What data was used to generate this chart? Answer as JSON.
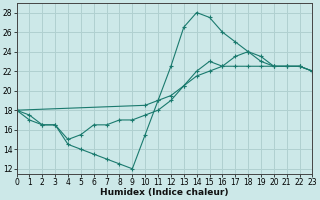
{
  "xlabel": "Humidex (Indice chaleur)",
  "background_color": "#cce8e8",
  "grid_color": "#b0d0d0",
  "line_color": "#1a7a6e",
  "xlim": [
    0,
    23
  ],
  "ylim": [
    11.5,
    29
  ],
  "xticks": [
    0,
    1,
    2,
    3,
    4,
    5,
    6,
    7,
    8,
    9,
    10,
    11,
    12,
    13,
    14,
    15,
    16,
    17,
    18,
    19,
    20,
    21,
    22,
    23
  ],
  "yticks": [
    12,
    14,
    16,
    18,
    20,
    22,
    24,
    26,
    28
  ],
  "lines": [
    {
      "x": [
        0,
        1,
        2,
        3,
        4,
        5,
        6,
        7,
        8,
        9,
        10,
        11,
        12,
        13,
        14,
        15,
        16,
        17,
        18,
        19,
        20,
        21,
        22,
        23
      ],
      "y": [
        18.0,
        17.0,
        16.5,
        16.5,
        14.5,
        14.0,
        13.5,
        13.0,
        12.5,
        12.0,
        15.5,
        19.0,
        22.5,
        26.5,
        28.0,
        27.5,
        26.0,
        25.0,
        24.0,
        23.5,
        22.5,
        22.5,
        22.5,
        22.0
      ]
    },
    {
      "x": [
        0,
        1,
        2,
        3,
        4,
        5,
        6,
        7,
        8,
        9,
        10,
        11,
        12,
        13,
        14,
        15,
        16,
        17,
        18,
        19,
        20,
        21,
        22,
        23
      ],
      "y": [
        18.0,
        17.5,
        16.5,
        16.5,
        15.0,
        15.5,
        16.5,
        16.5,
        17.0,
        17.0,
        17.5,
        18.0,
        19.0,
        20.5,
        22.0,
        23.0,
        22.5,
        23.5,
        24.0,
        23.0,
        22.5,
        22.5,
        22.5,
        22.0
      ]
    },
    {
      "x": [
        0,
        10,
        11,
        12,
        13,
        14,
        15,
        16,
        17,
        18,
        19,
        20,
        21,
        22,
        23
      ],
      "y": [
        18.0,
        18.5,
        19.0,
        19.5,
        20.5,
        21.5,
        22.0,
        22.5,
        22.5,
        22.5,
        22.5,
        22.5,
        22.5,
        22.5,
        22.0
      ]
    }
  ]
}
